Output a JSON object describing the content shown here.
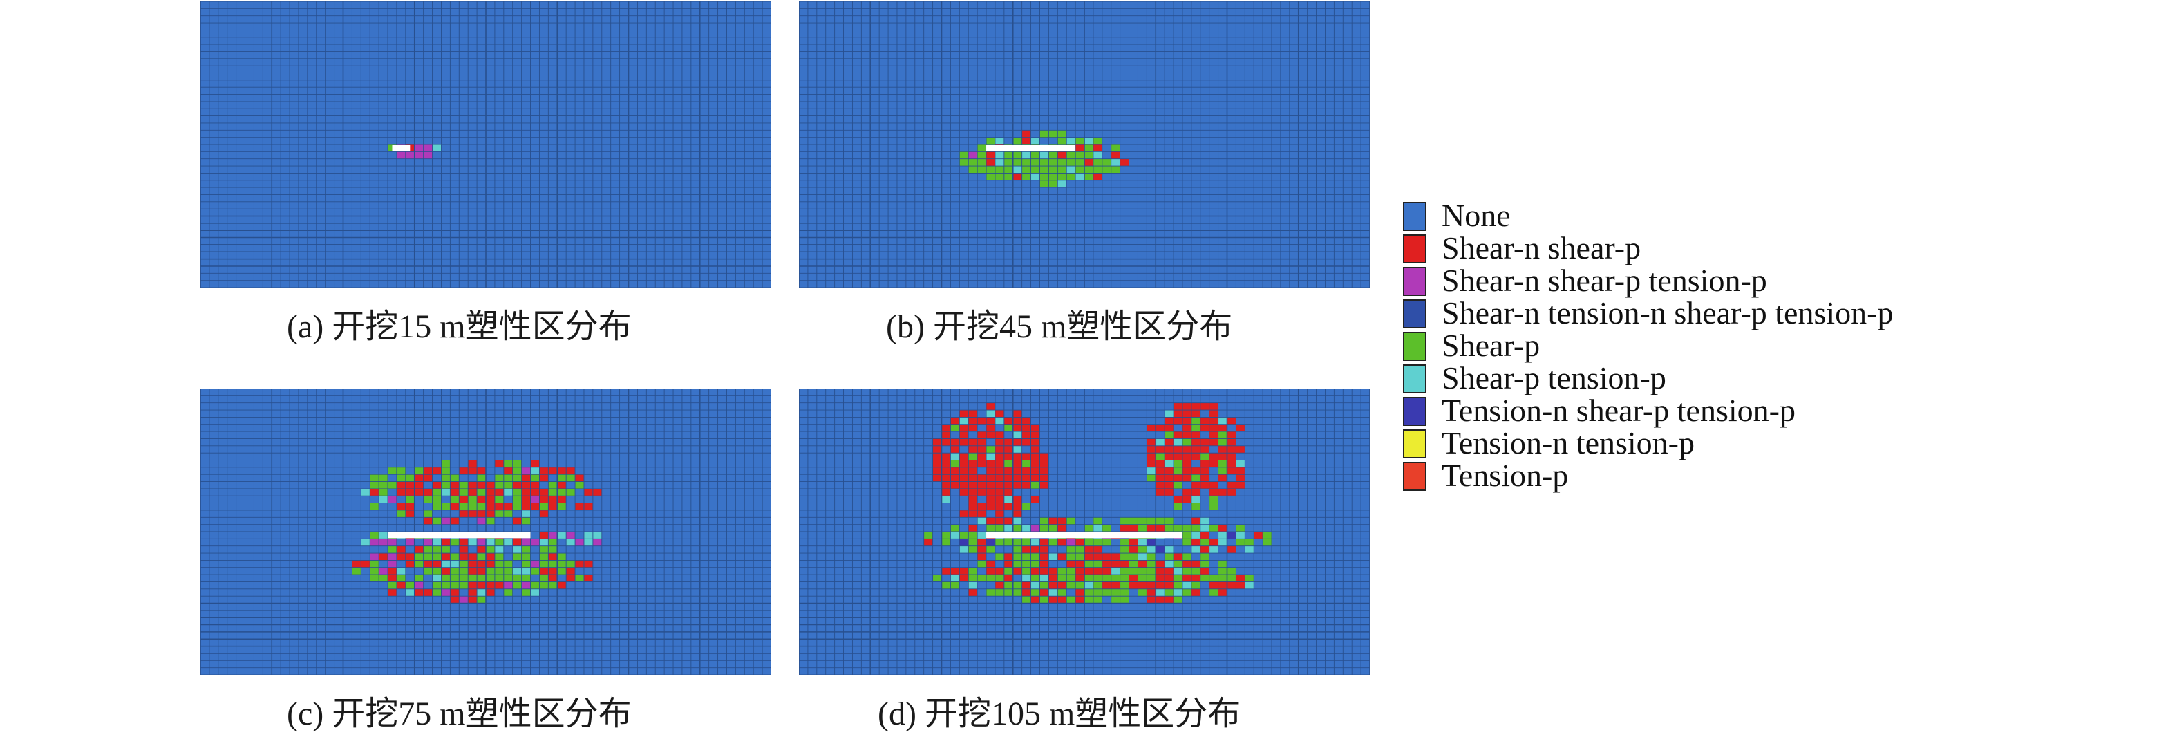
{
  "colors": {
    "background_mesh": "#3a73c8",
    "mesh_line": "#28508f",
    "tunnel": "#ffffff"
  },
  "panels": [
    {
      "id": "a",
      "caption": "(a) 开挖15 m塑性区分布",
      "excavation_m": 15
    },
    {
      "id": "b",
      "caption": "(b) 开挖45 m塑性区分布",
      "excavation_m": 45
    },
    {
      "id": "c",
      "caption": "(c) 开挖75 m塑性区分布",
      "excavation_m": 75
    },
    {
      "id": "d",
      "caption": "(d) 开挖105 m塑性区分布",
      "excavation_m": 105
    }
  ],
  "legend": [
    {
      "label": "None",
      "color": "#3a73c8"
    },
    {
      "label": "Shear-n shear-p",
      "color": "#e02020"
    },
    {
      "label": "Shear-n shear-p tension-p",
      "color": "#b03ab8"
    },
    {
      "label": "Shear-n tension-n shear-p tension-p",
      "color": "#2f4fa8"
    },
    {
      "label": "Shear-p",
      "color": "#5cbf2a"
    },
    {
      "label": "Shear-p tension-p",
      "color": "#5fd0d0"
    },
    {
      "label": "Tension-n shear-p tension-p",
      "color": "#3a3ab0"
    },
    {
      "label": "Tension-n tension-p",
      "color": "#ecec30"
    },
    {
      "label": "Tension-p",
      "color": "#e8402a"
    }
  ]
}
